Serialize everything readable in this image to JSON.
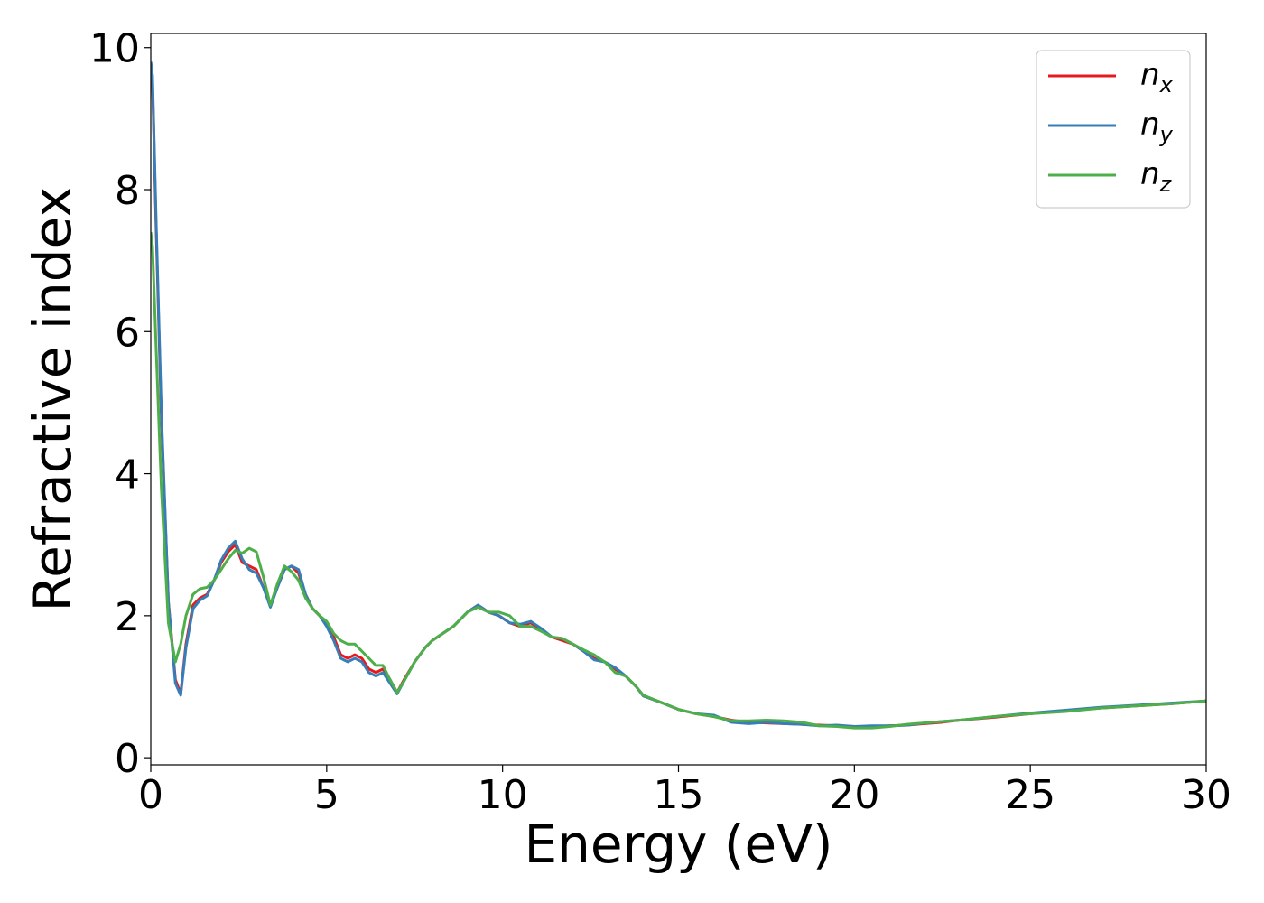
{
  "chart_data": {
    "type": "line",
    "title": "",
    "xlabel": "Energy (eV)",
    "ylabel": "Refractive index",
    "xlim": [
      0,
      30
    ],
    "ylim": [
      -0.1,
      10.2
    ],
    "xticks": [
      "0",
      "5",
      "10",
      "15",
      "20",
      "25",
      "30"
    ],
    "yticks": [
      "0",
      "2",
      "4",
      "6",
      "8",
      "10"
    ],
    "grid": false,
    "legend_position": "top-right",
    "series": [
      {
        "name_base": "n",
        "name_sub": "x",
        "color": "#e41a1c",
        "x": [
          0,
          0.05,
          0.15,
          0.3,
          0.5,
          0.7,
          0.85,
          1.0,
          1.2,
          1.4,
          1.6,
          1.8,
          2.0,
          2.2,
          2.4,
          2.6,
          2.8,
          3.0,
          3.2,
          3.4,
          3.6,
          3.8,
          4.0,
          4.2,
          4.4,
          4.6,
          4.8,
          5.0,
          5.2,
          5.4,
          5.6,
          5.8,
          6.0,
          6.2,
          6.4,
          6.6,
          6.8,
          7.0,
          7.2,
          7.5,
          7.8,
          8.0,
          8.3,
          8.6,
          9.0,
          9.3,
          9.6,
          9.9,
          10.2,
          10.5,
          10.8,
          11.1,
          11.4,
          11.7,
          12.0,
          12.3,
          12.6,
          12.9,
          13.2,
          13.5,
          13.8,
          14.0,
          14.5,
          15.0,
          15.5,
          16.0,
          16.5,
          17.0,
          17.5,
          18.0,
          18.5,
          19.0,
          19.5,
          20.0,
          20.5,
          21.0,
          21.5,
          22.0,
          22.5,
          23.0,
          24.0,
          25.0,
          26.0,
          27.0,
          28.0,
          29.0,
          30.0
        ],
        "y": [
          9.8,
          9.5,
          7.5,
          4.8,
          2.2,
          1.1,
          0.9,
          1.6,
          2.15,
          2.25,
          2.3,
          2.5,
          2.75,
          2.9,
          3.0,
          2.75,
          2.7,
          2.65,
          2.4,
          2.15,
          2.4,
          2.65,
          2.7,
          2.6,
          2.3,
          2.1,
          2.0,
          1.9,
          1.7,
          1.45,
          1.4,
          1.45,
          1.4,
          1.25,
          1.2,
          1.25,
          1.1,
          0.92,
          1.1,
          1.35,
          1.55,
          1.65,
          1.75,
          1.85,
          2.05,
          2.15,
          2.05,
          2.0,
          1.9,
          1.85,
          1.9,
          1.8,
          1.7,
          1.65,
          1.6,
          1.5,
          1.4,
          1.35,
          1.25,
          1.15,
          1.0,
          0.87,
          0.78,
          0.68,
          0.62,
          0.58,
          0.53,
          0.5,
          0.49,
          0.48,
          0.47,
          0.46,
          0.45,
          0.44,
          0.44,
          0.45,
          0.46,
          0.48,
          0.5,
          0.53,
          0.57,
          0.62,
          0.66,
          0.7,
          0.73,
          0.76,
          0.8
        ]
      },
      {
        "name_base": "n",
        "name_sub": "y",
        "color": "#377eb8",
        "x": [
          0,
          0.05,
          0.15,
          0.3,
          0.5,
          0.7,
          0.85,
          1.0,
          1.2,
          1.4,
          1.6,
          1.8,
          2.0,
          2.2,
          2.4,
          2.6,
          2.8,
          3.0,
          3.2,
          3.4,
          3.6,
          3.8,
          4.0,
          4.2,
          4.4,
          4.6,
          4.8,
          5.0,
          5.2,
          5.4,
          5.6,
          5.8,
          6.0,
          6.2,
          6.4,
          6.6,
          6.8,
          7.0,
          7.2,
          7.5,
          7.8,
          8.0,
          8.3,
          8.6,
          9.0,
          9.3,
          9.6,
          9.9,
          10.2,
          10.5,
          10.8,
          11.1,
          11.4,
          11.7,
          12.0,
          12.3,
          12.6,
          12.9,
          13.2,
          13.5,
          13.8,
          14.0,
          14.5,
          15.0,
          15.5,
          16.0,
          16.5,
          17.0,
          17.5,
          18.0,
          18.5,
          19.0,
          19.5,
          20.0,
          20.5,
          21.0,
          21.5,
          22.0,
          22.5,
          23.0,
          24.0,
          25.0,
          26.0,
          27.0,
          28.0,
          29.0,
          30.0
        ],
        "y": [
          9.8,
          9.6,
          7.6,
          4.9,
          2.2,
          1.05,
          0.88,
          1.55,
          2.1,
          2.22,
          2.28,
          2.5,
          2.78,
          2.95,
          3.05,
          2.8,
          2.65,
          2.6,
          2.4,
          2.12,
          2.4,
          2.65,
          2.7,
          2.65,
          2.3,
          2.1,
          2.0,
          1.85,
          1.65,
          1.4,
          1.35,
          1.4,
          1.35,
          1.2,
          1.15,
          1.2,
          1.05,
          0.9,
          1.08,
          1.35,
          1.55,
          1.65,
          1.75,
          1.85,
          2.05,
          2.15,
          2.05,
          2.0,
          1.9,
          1.88,
          1.92,
          1.82,
          1.7,
          1.68,
          1.6,
          1.5,
          1.38,
          1.35,
          1.27,
          1.15,
          1.0,
          0.87,
          0.78,
          0.68,
          0.62,
          0.6,
          0.5,
          0.48,
          0.5,
          0.48,
          0.47,
          0.45,
          0.46,
          0.44,
          0.45,
          0.45,
          0.46,
          0.49,
          0.51,
          0.53,
          0.58,
          0.63,
          0.67,
          0.71,
          0.74,
          0.77,
          0.8
        ]
      },
      {
        "name_base": "n",
        "name_sub": "z",
        "color": "#4daf4a",
        "x": [
          0,
          0.05,
          0.15,
          0.3,
          0.5,
          0.7,
          0.85,
          1.0,
          1.2,
          1.4,
          1.6,
          1.8,
          2.0,
          2.2,
          2.4,
          2.6,
          2.8,
          3.0,
          3.2,
          3.4,
          3.6,
          3.8,
          4.0,
          4.2,
          4.4,
          4.6,
          4.8,
          5.0,
          5.2,
          5.4,
          5.6,
          5.8,
          6.0,
          6.2,
          6.4,
          6.6,
          6.8,
          7.0,
          7.2,
          7.5,
          7.8,
          8.0,
          8.3,
          8.6,
          9.0,
          9.3,
          9.6,
          9.9,
          10.2,
          10.5,
          10.8,
          11.1,
          11.4,
          11.7,
          12.0,
          12.3,
          12.6,
          12.9,
          13.2,
          13.5,
          13.8,
          14.0,
          14.5,
          15.0,
          15.5,
          16.0,
          16.5,
          17.0,
          17.5,
          18.0,
          18.5,
          19.0,
          19.5,
          20.0,
          20.5,
          21.0,
          21.5,
          22.0,
          22.5,
          23.0,
          24.0,
          25.0,
          26.0,
          27.0,
          28.0,
          29.0,
          30.0
        ],
        "y": [
          7.4,
          7.2,
          5.8,
          3.8,
          1.9,
          1.35,
          1.6,
          2.0,
          2.3,
          2.38,
          2.4,
          2.5,
          2.65,
          2.8,
          2.92,
          2.88,
          2.95,
          2.9,
          2.55,
          2.15,
          2.45,
          2.7,
          2.62,
          2.5,
          2.25,
          2.1,
          2.0,
          1.92,
          1.75,
          1.65,
          1.6,
          1.6,
          1.5,
          1.4,
          1.3,
          1.3,
          1.1,
          0.92,
          1.08,
          1.35,
          1.55,
          1.65,
          1.75,
          1.85,
          2.05,
          2.12,
          2.05,
          2.05,
          2.0,
          1.85,
          1.85,
          1.78,
          1.7,
          1.68,
          1.6,
          1.52,
          1.45,
          1.35,
          1.2,
          1.15,
          1.0,
          0.88,
          0.78,
          0.68,
          0.62,
          0.58,
          0.52,
          0.52,
          0.53,
          0.52,
          0.5,
          0.45,
          0.44,
          0.42,
          0.42,
          0.44,
          0.47,
          0.49,
          0.51,
          0.53,
          0.58,
          0.62,
          0.65,
          0.7,
          0.73,
          0.76,
          0.8
        ]
      }
    ]
  }
}
